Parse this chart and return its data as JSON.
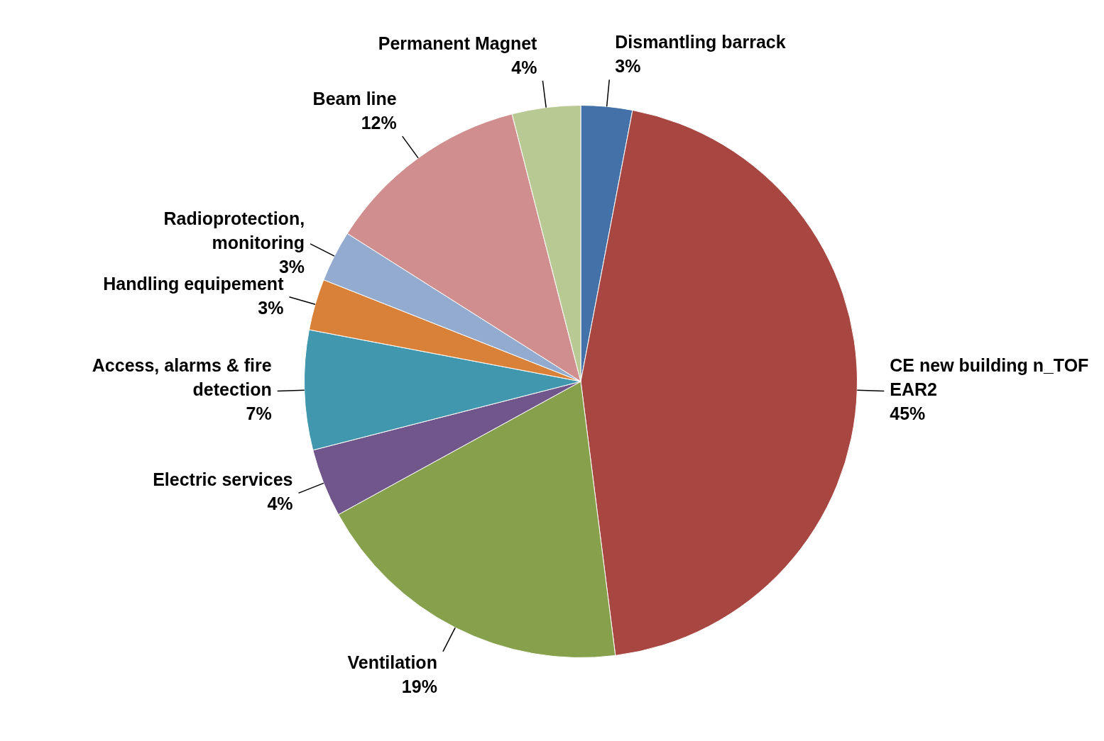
{
  "chart_data": {
    "type": "pie",
    "categories": [
      "Dismantling barrack",
      "CE new building n_TOF EAR2",
      "Ventilation",
      "Electric services",
      "Access, alarms & fire detection",
      "Handling equipement",
      "Radioprotection, monitoring",
      "Beam line",
      "Permanent Magnet"
    ],
    "values": [
      3,
      45,
      19,
      4,
      7,
      3,
      3,
      12,
      4
    ],
    "value_labels": [
      "3%",
      "45%",
      "19%",
      "4%",
      "7%",
      "3%",
      "3%",
      "12%",
      "4%"
    ],
    "colors": [
      "#4472a8",
      "#a84642",
      "#86a04c",
      "#71568c",
      "#4197ae",
      "#da8139",
      "#94abd0",
      "#d08f8e",
      "#b8c993"
    ],
    "legend": false
  }
}
